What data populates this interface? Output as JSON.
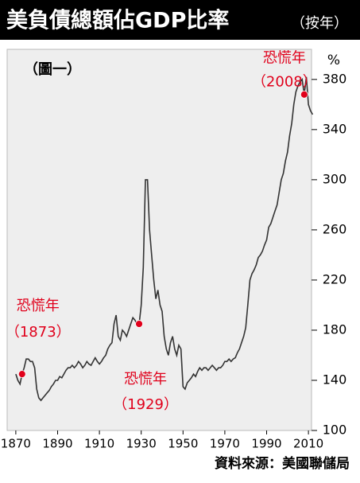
{
  "chart_data": {
    "type": "line",
    "title": "美負債總額佔GDP比率",
    "subtitle": "（按年）",
    "figure_label": "（圖一）",
    "unit_label": "%",
    "source": "資料來源：美國聯儲局",
    "xlim": [
      1867,
      2013
    ],
    "ylim": [
      100,
      404
    ],
    "xticks": [
      1870,
      1890,
      1910,
      1930,
      1950,
      1970,
      1990,
      2010
    ],
    "yticks": [
      100,
      140,
      180,
      220,
      260,
      300,
      340,
      380
    ],
    "series": [
      {
        "color": "#333333",
        "x": [
          1870,
          1871,
          1872,
          1873,
          1874,
          1875,
          1876,
          1877,
          1878,
          1879,
          1880,
          1881,
          1882,
          1883,
          1884,
          1885,
          1886,
          1887,
          1888,
          1889,
          1890,
          1891,
          1892,
          1893,
          1894,
          1895,
          1896,
          1897,
          1898,
          1899,
          1900,
          1901,
          1902,
          1903,
          1904,
          1905,
          1906,
          1907,
          1908,
          1909,
          1910,
          1911,
          1912,
          1913,
          1914,
          1915,
          1916,
          1917,
          1918,
          1919,
          1920,
          1921,
          1922,
          1923,
          1924,
          1925,
          1926,
          1927,
          1928,
          1929,
          1930,
          1931,
          1932,
          1933,
          1934,
          1935,
          1936,
          1937,
          1938,
          1939,
          1940,
          1941,
          1942,
          1943,
          1944,
          1945,
          1946,
          1947,
          1948,
          1949,
          1950,
          1951,
          1952,
          1953,
          1954,
          1955,
          1956,
          1957,
          1958,
          1959,
          1960,
          1961,
          1962,
          1963,
          1964,
          1965,
          1966,
          1967,
          1968,
          1969,
          1970,
          1971,
          1972,
          1973,
          1974,
          1975,
          1976,
          1977,
          1978,
          1979,
          1980,
          1981,
          1982,
          1983,
          1984,
          1985,
          1986,
          1987,
          1988,
          1989,
          1990,
          1991,
          1992,
          1993,
          1994,
          1995,
          1996,
          1997,
          1998,
          1999,
          2000,
          2001,
          2002,
          2003,
          2004,
          2005,
          2006,
          2007,
          2008,
          2009,
          2010,
          2011,
          2012
        ],
        "values": [
          145,
          140,
          137,
          145,
          150,
          157,
          157,
          155,
          155,
          150,
          133,
          126,
          124,
          126,
          128,
          130,
          132,
          135,
          137,
          140,
          140,
          143,
          142,
          145,
          148,
          150,
          150,
          152,
          150,
          152,
          155,
          153,
          150,
          152,
          155,
          153,
          152,
          155,
          158,
          155,
          153,
          155,
          158,
          160,
          165,
          168,
          170,
          185,
          192,
          175,
          172,
          180,
          178,
          175,
          180,
          185,
          190,
          188,
          185,
          185,
          200,
          230,
          300,
          300,
          260,
          240,
          220,
          205,
          212,
          200,
          195,
          175,
          165,
          160,
          170,
          175,
          165,
          160,
          168,
          165,
          135,
          133,
          138,
          140,
          142,
          145,
          143,
          147,
          150,
          148,
          150,
          150,
          148,
          150,
          152,
          150,
          148,
          150,
          150,
          152,
          155,
          155,
          157,
          155,
          157,
          158,
          162,
          165,
          170,
          175,
          182,
          200,
          220,
          225,
          228,
          232,
          238,
          240,
          243,
          248,
          252,
          262,
          265,
          270,
          275,
          280,
          290,
          300,
          305,
          315,
          322,
          335,
          345,
          360,
          370,
          375,
          378,
          380,
          368,
          382,
          360,
          355,
          352
        ]
      }
    ],
    "annotations": [
      {
        "label": "恐慌年",
        "year": "（1873）",
        "x": 1873,
        "y": 145,
        "color": "#e0001b"
      },
      {
        "label": "恐慌年",
        "year": "（1929）",
        "x": 1929,
        "y": 185,
        "color": "#e0001b"
      },
      {
        "label": "恐慌年",
        "year": "（2008）",
        "x": 2008,
        "y": 368,
        "color": "#e0001b"
      }
    ]
  }
}
